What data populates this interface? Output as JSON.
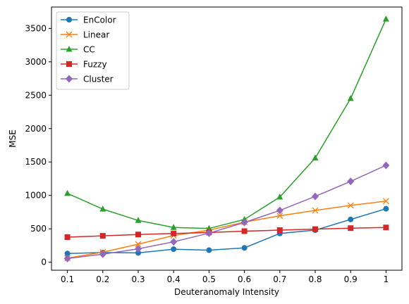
{
  "chart_data": {
    "type": "line",
    "xlabel": "Deuteranomaly Intensity",
    "ylabel": "MSE",
    "x": [
      0.1,
      0.2,
      0.3,
      0.4,
      0.5,
      0.6,
      0.7,
      0.8,
      0.9,
      1
    ],
    "x_tick_labels": [
      "0.1",
      "0.2",
      "0.3",
      "0.4",
      "0.5",
      "0.6",
      "0.7",
      "0.8",
      "0.9",
      "1"
    ],
    "y_ticks": [
      0,
      500,
      1000,
      1500,
      2000,
      2500,
      3000,
      3500
    ],
    "xlim": [
      0.055,
      1.045
    ],
    "ylim": [
      -120,
      3820
    ],
    "grid": false,
    "legend_position": "top-left",
    "series": [
      {
        "name": "EnColor",
        "color": "#1f77b4",
        "marker": "circle",
        "values": [
          130,
          145,
          140,
          195,
          180,
          215,
          430,
          480,
          640,
          800
        ]
      },
      {
        "name": "Linear",
        "color": "#ff7f0e",
        "marker": "x",
        "values": [
          60,
          150,
          270,
          400,
          480,
          600,
          695,
          775,
          850,
          915
        ]
      },
      {
        "name": "CC",
        "color": "#2ca02c",
        "marker": "triangle",
        "values": [
          1030,
          795,
          625,
          520,
          505,
          640,
          975,
          1560,
          2450,
          3640
        ]
      },
      {
        "name": "Fuzzy",
        "color": "#d62728",
        "marker": "square",
        "values": [
          375,
          395,
          415,
          430,
          445,
          465,
          480,
          495,
          510,
          520
        ]
      },
      {
        "name": "Cluster",
        "color": "#9467bd",
        "marker": "diamond",
        "values": [
          55,
          120,
          200,
          305,
          435,
          595,
          775,
          985,
          1210,
          1450
        ]
      }
    ]
  }
}
